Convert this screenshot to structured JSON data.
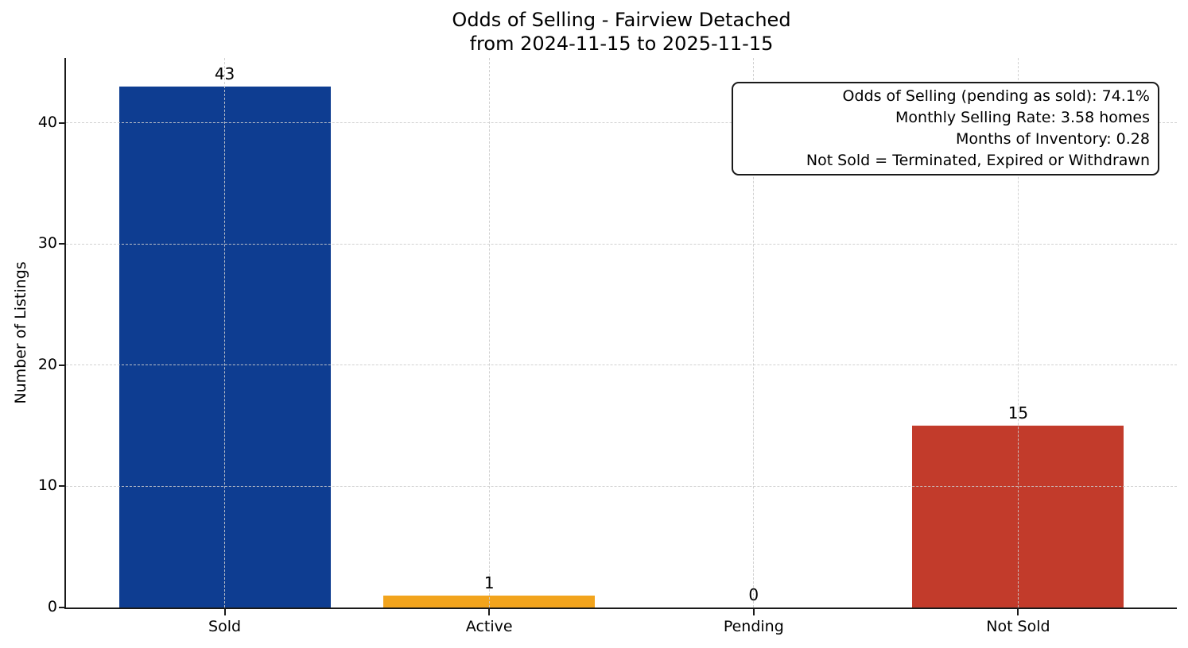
{
  "figure": {
    "title_line1": "Odds of Selling - Fairview Detached",
    "title_line2": "from 2024-11-15 to 2025-11-15"
  },
  "annotation_box": {
    "lines": [
      "Odds of Selling (pending as sold): 74.1%",
      "Monthly Selling Rate: 3.58 homes",
      "Months of Inventory: 0.28",
      "Not Sold = Terminated, Expired or Withdrawn"
    ]
  },
  "chart_data": {
    "type": "bar",
    "title": "Odds of Selling - Fairview Detached\nfrom 2024-11-15 to 2025-11-15",
    "categories": [
      "Sold",
      "Active",
      "Pending",
      "Not Sold"
    ],
    "values": [
      43,
      1,
      0,
      15
    ],
    "bar_colors": [
      "#0e3d91",
      "#f2a41d",
      null,
      "#c23b2b"
    ],
    "value_labels": [
      "43",
      "1",
      "0",
      "15"
    ],
    "xlabel": "",
    "ylabel": "Number of Listings",
    "yticks": [
      0,
      10,
      20,
      30,
      40
    ],
    "ylim": [
      0,
      45.35
    ],
    "grid": true,
    "grid_style": "dashed",
    "legend": "none"
  },
  "colors": {
    "bar_sold": "#0e3d91",
    "bar_active": "#f2a41d",
    "bar_not_sold": "#c23b2b",
    "grid": "#cdcdcd",
    "spine": "#1a1a1a",
    "text": "#000000",
    "background": "#ffffff"
  }
}
